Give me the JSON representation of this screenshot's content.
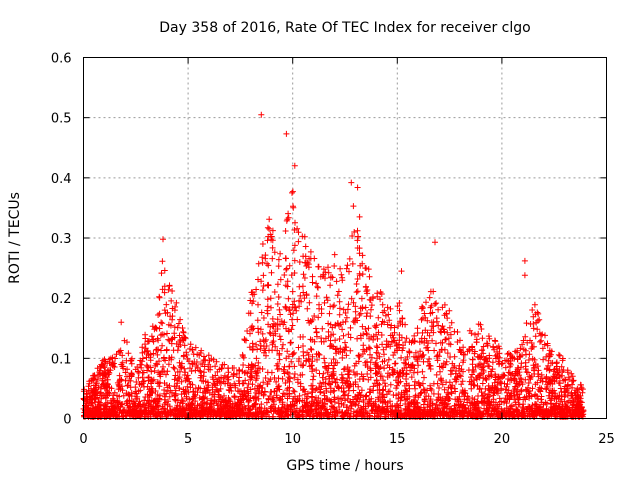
{
  "chart_data": {
    "type": "scatter",
    "title": "Day 358 of 2016, Rate Of TEC Index for receiver clgo",
    "xlabel": "GPS time / hours",
    "ylabel": "ROTI / TECUs",
    "xlim": [
      0,
      25
    ],
    "ylim": [
      0,
      0.6
    ],
    "xticks": [
      0,
      5,
      10,
      15,
      20,
      25
    ],
    "yticks": [
      0,
      0.1,
      0.2,
      0.3,
      0.4,
      0.5,
      0.6
    ],
    "xtick_labels": [
      "0",
      "5",
      "10",
      "15",
      "20",
      "25"
    ],
    "ytick_labels": [
      "0",
      "0.1",
      "0.2",
      "0.3",
      "0.4",
      "0.5",
      "0.6"
    ],
    "grid": true,
    "marker": "+",
    "color": "#ff0000",
    "series": [
      {
        "name": "ROTI",
        "envelope": [
          {
            "x": 0.0,
            "y": 0.045
          },
          {
            "x": 0.5,
            "y": 0.07
          },
          {
            "x": 1.0,
            "y": 0.1
          },
          {
            "x": 1.5,
            "y": 0.1
          },
          {
            "x": 2.0,
            "y": 0.13
          },
          {
            "x": 2.5,
            "y": 0.08
          },
          {
            "x": 3.0,
            "y": 0.14
          },
          {
            "x": 3.5,
            "y": 0.16
          },
          {
            "x": 3.8,
            "y": 0.29
          },
          {
            "x": 4.2,
            "y": 0.21
          },
          {
            "x": 4.5,
            "y": 0.19
          },
          {
            "x": 5.0,
            "y": 0.12
          },
          {
            "x": 5.5,
            "y": 0.11
          },
          {
            "x": 6.0,
            "y": 0.1
          },
          {
            "x": 6.5,
            "y": 0.09
          },
          {
            "x": 7.0,
            "y": 0.08
          },
          {
            "x": 7.5,
            "y": 0.08
          },
          {
            "x": 8.0,
            "y": 0.2
          },
          {
            "x": 8.5,
            "y": 0.28
          },
          {
            "x": 8.8,
            "y": 0.37
          },
          {
            "x": 9.2,
            "y": 0.3
          },
          {
            "x": 9.6,
            "y": 0.3
          },
          {
            "x": 10.0,
            "y": 0.4
          },
          {
            "x": 10.5,
            "y": 0.32
          },
          {
            "x": 11.0,
            "y": 0.27
          },
          {
            "x": 11.5,
            "y": 0.24
          },
          {
            "x": 12.0,
            "y": 0.27
          },
          {
            "x": 12.5,
            "y": 0.24
          },
          {
            "x": 13.0,
            "y": 0.33
          },
          {
            "x": 13.5,
            "y": 0.26
          },
          {
            "x": 14.0,
            "y": 0.21
          },
          {
            "x": 14.5,
            "y": 0.2
          },
          {
            "x": 15.0,
            "y": 0.19
          },
          {
            "x": 15.5,
            "y": 0.14
          },
          {
            "x": 16.0,
            "y": 0.17
          },
          {
            "x": 16.5,
            "y": 0.22
          },
          {
            "x": 17.0,
            "y": 0.2
          },
          {
            "x": 17.5,
            "y": 0.17
          },
          {
            "x": 18.0,
            "y": 0.14
          },
          {
            "x": 18.5,
            "y": 0.15
          },
          {
            "x": 19.0,
            "y": 0.16
          },
          {
            "x": 19.5,
            "y": 0.13
          },
          {
            "x": 20.0,
            "y": 0.11
          },
          {
            "x": 20.5,
            "y": 0.1
          },
          {
            "x": 21.0,
            "y": 0.13
          },
          {
            "x": 21.5,
            "y": 0.2
          },
          {
            "x": 22.0,
            "y": 0.14
          },
          {
            "x": 22.5,
            "y": 0.12
          },
          {
            "x": 23.0,
            "y": 0.09
          },
          {
            "x": 23.5,
            "y": 0.06
          },
          {
            "x": 23.9,
            "y": 0.05
          }
        ],
        "outliers": [
          {
            "x": 8.5,
            "y": 0.505
          },
          {
            "x": 9.7,
            "y": 0.473
          },
          {
            "x": 10.1,
            "y": 0.42
          },
          {
            "x": 12.8,
            "y": 0.392
          },
          {
            "x": 13.1,
            "y": 0.384
          },
          {
            "x": 13.2,
            "y": 0.335
          },
          {
            "x": 12.9,
            "y": 0.353
          },
          {
            "x": 16.8,
            "y": 0.293
          },
          {
            "x": 21.1,
            "y": 0.262
          },
          {
            "x": 21.1,
            "y": 0.238
          },
          {
            "x": 3.8,
            "y": 0.298
          },
          {
            "x": 1.8,
            "y": 0.16
          },
          {
            "x": 14.2,
            "y": 0.21
          },
          {
            "x": 15.2,
            "y": 0.245
          },
          {
            "x": 15.1,
            "y": 0.192
          }
        ]
      }
    ]
  }
}
